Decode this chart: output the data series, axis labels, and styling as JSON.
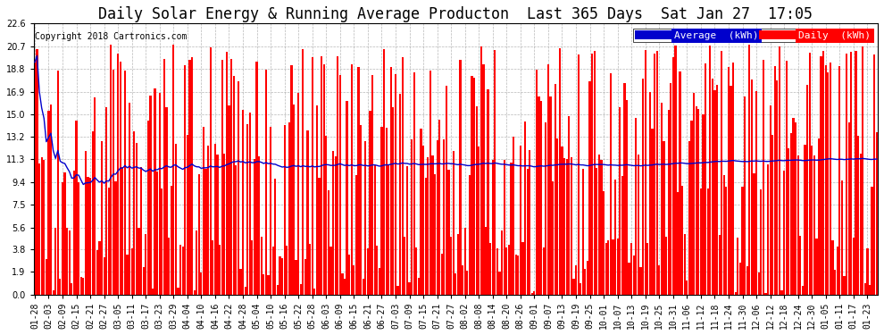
{
  "title": "Daily Solar Energy & Running Average Producton  Last 365 Days  Sat Jan 27  17:05",
  "copyright": "Copyright 2018 Cartronics.com",
  "legend_avg_label": "Average  (kWh)",
  "legend_daily_label": "Daily  (kWh)",
  "avg_color": "#0000cc",
  "daily_color": "#ff0000",
  "bg_color": "#ffffff",
  "plot_bg_color": "#ffffff",
  "grid_color": "#999999",
  "ylim": [
    0.0,
    22.6
  ],
  "yticks": [
    0.0,
    1.9,
    3.8,
    5.6,
    7.5,
    9.4,
    11.3,
    13.2,
    15.0,
    16.9,
    18.8,
    20.7,
    22.6
  ],
  "title_fontsize": 12,
  "copyright_fontsize": 7,
  "tick_fontsize": 7,
  "legend_fontsize": 8
}
